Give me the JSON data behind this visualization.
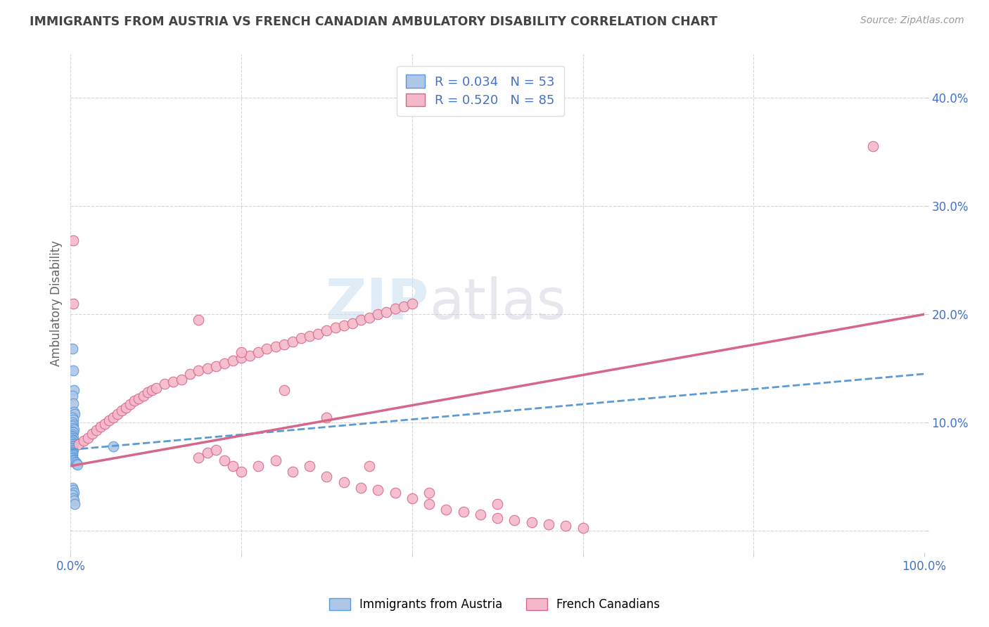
{
  "title": "IMMIGRANTS FROM AUSTRIA VS FRENCH CANADIAN AMBULATORY DISABILITY CORRELATION CHART",
  "source": "Source: ZipAtlas.com",
  "ylabel": "Ambulatory Disability",
  "xlim": [
    0,
    1.0
  ],
  "ylim": [
    -0.02,
    0.44
  ],
  "blue_R": 0.034,
  "blue_N": 53,
  "pink_R": 0.52,
  "pink_N": 85,
  "legend_label_blue": "Immigrants from Austria",
  "legend_label_pink": "French Canadians",
  "watermark_left": "ZIP",
  "watermark_right": "atlas",
  "blue_color": "#aec6e8",
  "blue_edge_color": "#5b9bd5",
  "pink_color": "#f4b8c8",
  "pink_edge_color": "#d4678a",
  "blue_line_color": "#5b9bd5",
  "pink_line_color": "#d4678a",
  "grid_color": "#cccccc",
  "title_color": "#444444",
  "axis_tick_color": "#4472c4",
  "blue_scatter_x": [
    0.002,
    0.003,
    0.004,
    0.002,
    0.003,
    0.004,
    0.005,
    0.002,
    0.003,
    0.002,
    0.003,
    0.002,
    0.003,
    0.004,
    0.002,
    0.003,
    0.002,
    0.001,
    0.002,
    0.003,
    0.001,
    0.002,
    0.003,
    0.002,
    0.003,
    0.002,
    0.003,
    0.002,
    0.001,
    0.002,
    0.003,
    0.002,
    0.001,
    0.002,
    0.001,
    0.002,
    0.001,
    0.002,
    0.001,
    0.003,
    0.004,
    0.005,
    0.006,
    0.007,
    0.008,
    0.002,
    0.003,
    0.004,
    0.05,
    0.002,
    0.003,
    0.004,
    0.005
  ],
  "blue_scatter_y": [
    0.168,
    0.148,
    0.13,
    0.125,
    0.118,
    0.11,
    0.108,
    0.105,
    0.103,
    0.1,
    0.098,
    0.097,
    0.095,
    0.094,
    0.092,
    0.091,
    0.089,
    0.088,
    0.087,
    0.086,
    0.085,
    0.084,
    0.083,
    0.082,
    0.081,
    0.08,
    0.079,
    0.078,
    0.077,
    0.076,
    0.075,
    0.074,
    0.073,
    0.072,
    0.071,
    0.07,
    0.069,
    0.068,
    0.067,
    0.066,
    0.065,
    0.064,
    0.063,
    0.062,
    0.061,
    0.04,
    0.038,
    0.035,
    0.078,
    0.033,
    0.03,
    0.028,
    0.025
  ],
  "pink_scatter_x": [
    0.003,
    0.01,
    0.015,
    0.02,
    0.025,
    0.03,
    0.035,
    0.04,
    0.045,
    0.05,
    0.055,
    0.06,
    0.065,
    0.07,
    0.075,
    0.08,
    0.085,
    0.09,
    0.095,
    0.1,
    0.11,
    0.12,
    0.13,
    0.14,
    0.15,
    0.16,
    0.17,
    0.18,
    0.19,
    0.2,
    0.21,
    0.22,
    0.23,
    0.24,
    0.25,
    0.26,
    0.27,
    0.28,
    0.29,
    0.3,
    0.31,
    0.32,
    0.33,
    0.34,
    0.35,
    0.36,
    0.37,
    0.38,
    0.39,
    0.4,
    0.15,
    0.16,
    0.17,
    0.18,
    0.19,
    0.2,
    0.22,
    0.24,
    0.26,
    0.28,
    0.3,
    0.32,
    0.34,
    0.36,
    0.38,
    0.4,
    0.42,
    0.44,
    0.46,
    0.48,
    0.5,
    0.52,
    0.54,
    0.56,
    0.58,
    0.6,
    0.003,
    0.15,
    0.2,
    0.25,
    0.3,
    0.35,
    0.42,
    0.5,
    0.94
  ],
  "pink_scatter_y": [
    0.268,
    0.08,
    0.083,
    0.086,
    0.09,
    0.093,
    0.096,
    0.099,
    0.102,
    0.105,
    0.108,
    0.111,
    0.114,
    0.117,
    0.12,
    0.122,
    0.125,
    0.128,
    0.13,
    0.132,
    0.136,
    0.138,
    0.14,
    0.145,
    0.148,
    0.15,
    0.152,
    0.155,
    0.157,
    0.16,
    0.162,
    0.165,
    0.168,
    0.17,
    0.172,
    0.175,
    0.178,
    0.18,
    0.182,
    0.185,
    0.188,
    0.19,
    0.192,
    0.195,
    0.197,
    0.2,
    0.202,
    0.205,
    0.207,
    0.21,
    0.068,
    0.072,
    0.075,
    0.065,
    0.06,
    0.055,
    0.06,
    0.065,
    0.055,
    0.06,
    0.05,
    0.045,
    0.04,
    0.038,
    0.035,
    0.03,
    0.025,
    0.02,
    0.018,
    0.015,
    0.012,
    0.01,
    0.008,
    0.006,
    0.005,
    0.003,
    0.21,
    0.195,
    0.165,
    0.13,
    0.105,
    0.06,
    0.035,
    0.025,
    0.355
  ],
  "blue_line_x": [
    0.0,
    1.0
  ],
  "blue_line_y": [
    0.075,
    0.145
  ],
  "pink_line_x": [
    0.0,
    1.0
  ],
  "pink_line_y": [
    0.06,
    0.2
  ]
}
